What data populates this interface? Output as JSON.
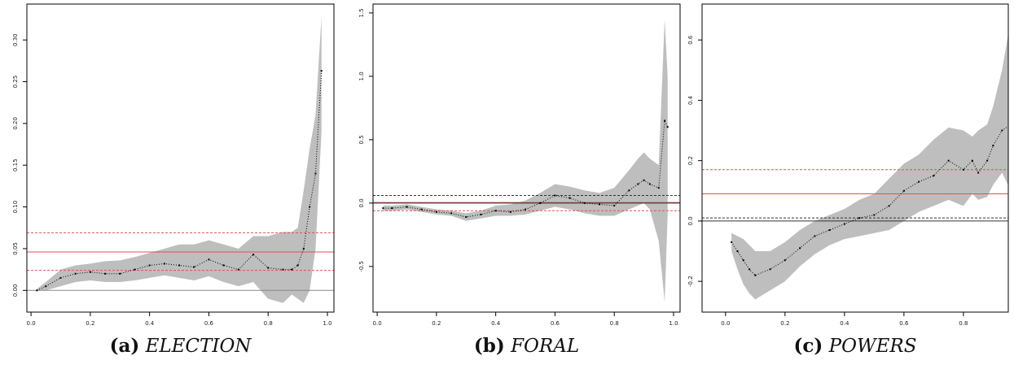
{
  "chart_data": [
    {
      "type": "line",
      "label": "(a)",
      "caption": "ELECTION",
      "x": [
        0.02,
        0.05,
        0.1,
        0.15,
        0.2,
        0.25,
        0.3,
        0.35,
        0.4,
        0.45,
        0.5,
        0.55,
        0.6,
        0.65,
        0.7,
        0.75,
        0.8,
        0.85,
        0.88,
        0.9,
        0.92,
        0.94,
        0.96,
        0.98
      ],
      "values": [
        0,
        0.005,
        0.015,
        0.02,
        0.022,
        0.02,
        0.02,
        0.025,
        0.03,
        0.032,
        0.03,
        0.028,
        0.037,
        0.03,
        0.025,
        0.043,
        0.027,
        0.025,
        0.025,
        0.03,
        0.05,
        0.1,
        0.14,
        0.263
      ],
      "lower": [
        0,
        0,
        0.005,
        0.01,
        0.012,
        0.01,
        0.01,
        0.012,
        0.015,
        0.018,
        0.015,
        0.012,
        0.017,
        0.01,
        0.005,
        0.01,
        -0.01,
        -0.015,
        -0.005,
        -0.01,
        -0.015,
        0,
        0.05,
        0.19
      ],
      "upper": [
        0.002,
        0.01,
        0.025,
        0.03,
        0.032,
        0.035,
        0.036,
        0.04,
        0.045,
        0.05,
        0.055,
        0.055,
        0.06,
        0.055,
        0.05,
        0.065,
        0.065,
        0.07,
        0.07,
        0.075,
        0.12,
        0.17,
        0.21,
        0.328
      ],
      "color": "#000000",
      "band_color": "#bebebe",
      "reference_lines": [
        {
          "value": 0,
          "color": "#888888",
          "style": "solid"
        },
        {
          "value": 0.046,
          "color": "#e05050",
          "style": "solid"
        },
        {
          "value": 0.069,
          "color": "#e05050",
          "style": "dashed"
        },
        {
          "value": 0.024,
          "color": "#e05050",
          "style": "dashed"
        }
      ],
      "xlim": [
        -0.014,
        1.022
      ],
      "ylim": [
        -0.026,
        0.343
      ],
      "xticks": [
        {
          "value": 0,
          "label": "0.0"
        },
        {
          "value": 0.2,
          "label": "0.2"
        },
        {
          "value": 0.4,
          "label": "0.4"
        },
        {
          "value": 0.6,
          "label": "0.6"
        },
        {
          "value": 0.8,
          "label": "0.8"
        },
        {
          "value": 1,
          "label": "1.0"
        }
      ],
      "yticks": [
        {
          "value": 0,
          "label": "0.00"
        },
        {
          "value": 0.05,
          "label": "0.05"
        },
        {
          "value": 0.1,
          "label": "0.10"
        },
        {
          "value": 0.15,
          "label": "0.15"
        },
        {
          "value": 0.2,
          "label": "0.20"
        },
        {
          "value": 0.25,
          "label": "0.25"
        },
        {
          "value": 0.3,
          "label": "0.30"
        }
      ]
    },
    {
      "type": "line",
      "label": "(b)",
      "caption": "FORAL",
      "x": [
        0.02,
        0.05,
        0.1,
        0.15,
        0.2,
        0.25,
        0.3,
        0.35,
        0.4,
        0.45,
        0.5,
        0.55,
        0.6,
        0.65,
        0.7,
        0.75,
        0.8,
        0.85,
        0.88,
        0.9,
        0.92,
        0.95,
        0.97,
        0.98
      ],
      "values": [
        -0.04,
        -0.04,
        -0.03,
        -0.05,
        -0.07,
        -0.08,
        -0.11,
        -0.09,
        -0.06,
        -0.07,
        -0.05,
        0,
        0.06,
        0.04,
        0,
        -0.01,
        -0.02,
        0.1,
        0.15,
        0.18,
        0.15,
        0.12,
        0.65,
        0.6
      ],
      "lower": [
        -0.06,
        -0.06,
        -0.05,
        -0.07,
        -0.09,
        -0.1,
        -0.14,
        -0.12,
        -0.1,
        -0.1,
        -0.09,
        -0.06,
        -0.03,
        -0.05,
        -0.08,
        -0.1,
        -0.1,
        -0.05,
        -0.02,
        0,
        -0.05,
        -0.3,
        -0.78,
        -0.1
      ],
      "upper": [
        -0.02,
        -0.02,
        -0.01,
        -0.03,
        -0.05,
        -0.06,
        -0.08,
        -0.06,
        -0.02,
        -0.01,
        0.02,
        0.08,
        0.15,
        0.13,
        0.1,
        0.08,
        0.12,
        0.26,
        0.35,
        0.4,
        0.35,
        0.3,
        1.45,
        1.0
      ],
      "color": "#000000",
      "band_color": "#bebebe",
      "reference_lines": [
        {
          "value": 0.005,
          "color": "#e05050",
          "style": "solid"
        },
        {
          "value": 0,
          "color": "#333333",
          "style": "solid"
        },
        {
          "value": 0.06,
          "color": "#333333",
          "style": "dashed"
        },
        {
          "value": -0.06,
          "color": "#e05050",
          "style": "dashed"
        }
      ],
      "xlim": [
        -0.014,
        1.022
      ],
      "ylim": [
        -0.86,
        1.57
      ],
      "xticks": [
        {
          "value": 0,
          "label": "0.0"
        },
        {
          "value": 0.2,
          "label": "0.2"
        },
        {
          "value": 0.4,
          "label": "0.4"
        },
        {
          "value": 0.6,
          "label": "0.6"
        },
        {
          "value": 0.8,
          "label": "0.8"
        },
        {
          "value": 1,
          "label": "1.0"
        }
      ],
      "yticks": [
        {
          "value": -0.5,
          "label": "-0.5"
        },
        {
          "value": 0,
          "label": "0.0"
        },
        {
          "value": 0.5,
          "label": "0.5"
        },
        {
          "value": 1,
          "label": "1.0"
        },
        {
          "value": 1.5,
          "label": "1.5"
        }
      ]
    },
    {
      "type": "line",
      "label": "(c)",
      "caption": "POWERS",
      "x": [
        0.02,
        0.04,
        0.06,
        0.08,
        0.1,
        0.15,
        0.2,
        0.25,
        0.3,
        0.35,
        0.4,
        0.45,
        0.5,
        0.55,
        0.6,
        0.65,
        0.7,
        0.75,
        0.8,
        0.83,
        0.85,
        0.88,
        0.9,
        0.93,
        0.96
      ],
      "values": [
        -0.07,
        -0.1,
        -0.13,
        -0.16,
        -0.18,
        -0.16,
        -0.13,
        -0.09,
        -0.05,
        -0.03,
        -0.01,
        0.01,
        0.02,
        0.05,
        0.1,
        0.13,
        0.15,
        0.2,
        0.17,
        0.2,
        0.16,
        0.2,
        0.25,
        0.3,
        0.32
      ],
      "lower": [
        -0.1,
        -0.16,
        -0.21,
        -0.24,
        -0.26,
        -0.23,
        -0.2,
        -0.15,
        -0.11,
        -0.08,
        -0.06,
        -0.05,
        -0.04,
        -0.03,
        0,
        0.03,
        0.05,
        0.07,
        0.05,
        0.09,
        0.07,
        0.08,
        0.12,
        0.16,
        0.1
      ],
      "upper": [
        -0.04,
        -0.05,
        -0.06,
        -0.08,
        -0.1,
        -0.1,
        -0.07,
        -0.03,
        0,
        0.02,
        0.04,
        0.07,
        0.09,
        0.14,
        0.19,
        0.22,
        0.27,
        0.31,
        0.3,
        0.28,
        0.3,
        0.32,
        0.38,
        0.5,
        0.67
      ],
      "color": "#000000",
      "band_color": "#bebebe",
      "reference_lines": [
        {
          "value": 0,
          "color": "#333333",
          "style": "solid"
        },
        {
          "value": 0.09,
          "color": "#e05050",
          "style": "solid"
        },
        {
          "value": 0.17,
          "color": "#e05050",
          "style": "dashed"
        },
        {
          "value": 0.01,
          "color": "#333333",
          "style": "dashed"
        }
      ],
      "xlim": [
        -0.079,
        0.951
      ],
      "ylim": [
        -0.302,
        0.719
      ],
      "xticks": [
        {
          "value": 0,
          "label": "0.0"
        },
        {
          "value": 0.2,
          "label": "0.2"
        },
        {
          "value": 0.4,
          "label": "0.4"
        },
        {
          "value": 0.6,
          "label": "0.6"
        },
        {
          "value": 0.8,
          "label": "0.8"
        }
      ],
      "yticks": [
        {
          "value": -0.2,
          "label": "-0.2"
        },
        {
          "value": 0,
          "label": "0.0"
        },
        {
          "value": 0.2,
          "label": "0.2"
        },
        {
          "value": 0.4,
          "label": "0.4"
        },
        {
          "value": 0.6,
          "label": "0.6"
        }
      ]
    }
  ]
}
